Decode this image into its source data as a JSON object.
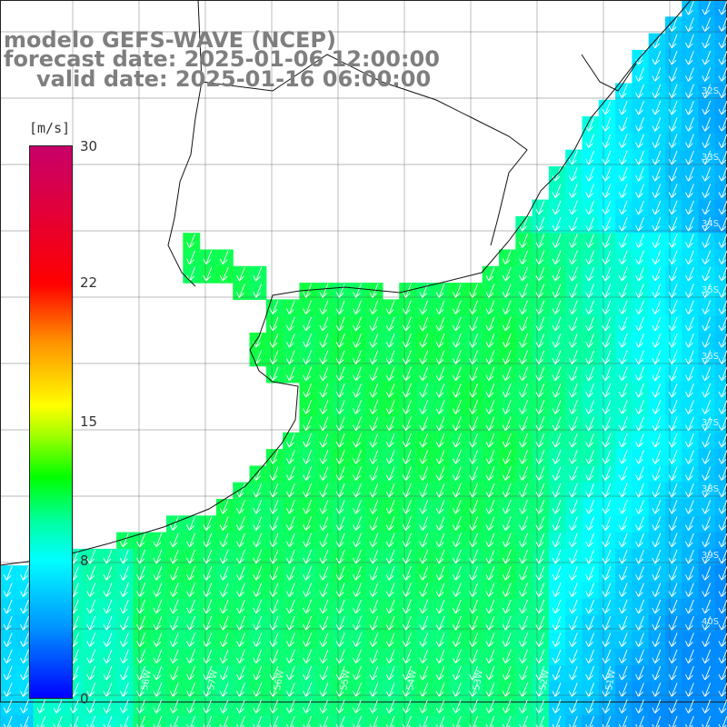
{
  "title": {
    "model": "modelo GEFS-WAVE (NCEP)",
    "forecast": "forecast date: 2025-01-06 12:00:00",
    "valid": "valid date: 2025-01-16 06:00:00"
  },
  "colorbar": {
    "unit": "[m/s]",
    "ticks": [
      "30",
      "22",
      "15",
      "8",
      "0"
    ],
    "colors": [
      "#c8006a",
      "#ff0000",
      "#ff8c00",
      "#ffff00",
      "#00ff00",
      "#00ffff",
      "#0096ff",
      "#0000ff"
    ]
  },
  "map": {
    "lat_labels": [
      "32S",
      "33S",
      "34S",
      "35S",
      "36S",
      "37S",
      "38S",
      "39S",
      "40S"
    ],
    "lon_labels": [
      "58W",
      "57W",
      "56W",
      "55W",
      "54W",
      "53W",
      "52W",
      "51W"
    ],
    "land_color": "#ffffff",
    "arrow_color": "#ffffff",
    "wind_direction": "from north-northeast"
  }
}
